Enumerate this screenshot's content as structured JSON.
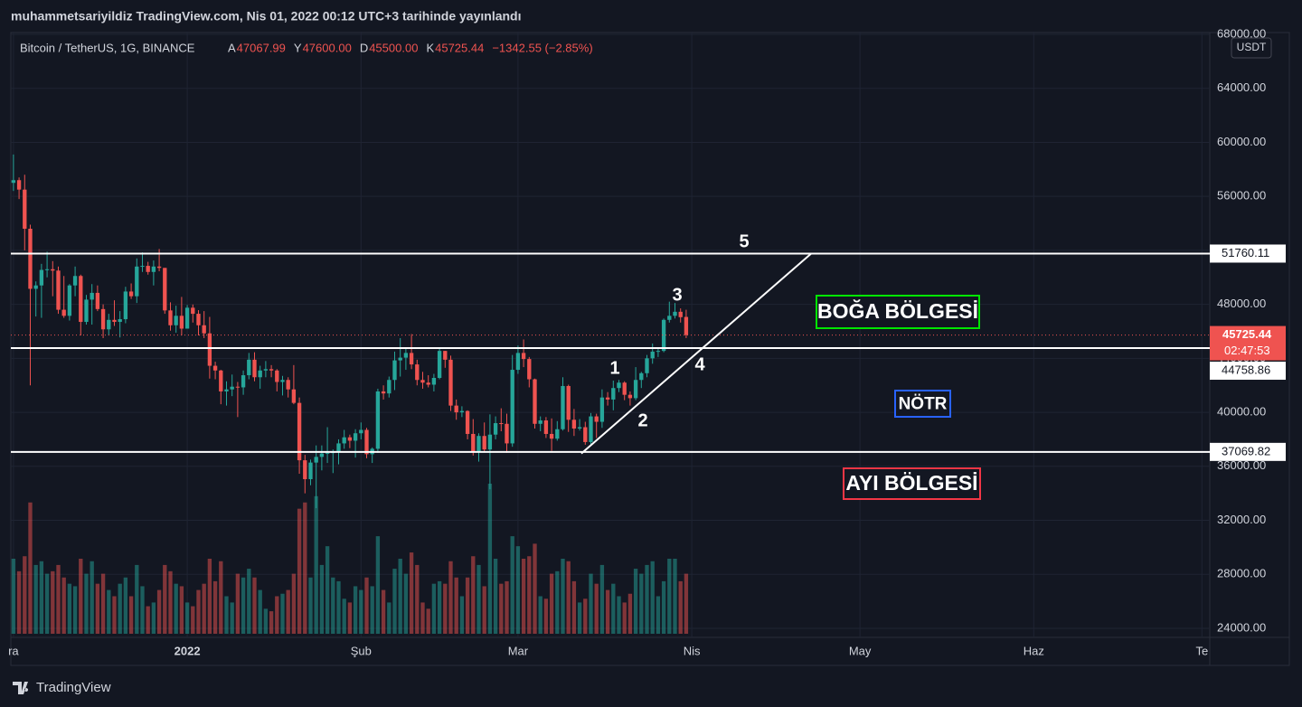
{
  "header": "muhammetsariyildiz TradingView.com, Nis 01, 2022 00:12 UTC+3 tarihinde yayınlandı",
  "footer": "TradingView",
  "chart_data": {
    "type": "candlestick",
    "title": "Bitcoin / TetherUS, 1G, BINANCE",
    "legend": [
      {
        "label": "A",
        "value": "47067.99"
      },
      {
        "label": "Y",
        "value": "47600.00"
      },
      {
        "label": "D",
        "value": "45500.00"
      },
      {
        "label": "K",
        "value": "45725.44"
      }
    ],
    "change": "−1342.55 (−2.85%)",
    "currency": "USDT",
    "countdown": "02:47:53",
    "up_color": "#26a69a",
    "down_color": "#ef5350",
    "xlim": [
      -2.4,
      213.4
    ],
    "xticks": [
      {
        "value": 0,
        "label": "ra"
      },
      {
        "value": 31,
        "label": "2022"
      },
      {
        "value": 62,
        "label": "Şub"
      },
      {
        "value": 90,
        "label": "Mar"
      },
      {
        "value": 121,
        "label": "Nis"
      },
      {
        "value": 151,
        "label": "May"
      },
      {
        "value": 182,
        "label": "Haz"
      },
      {
        "value": 212,
        "label": "Te"
      }
    ],
    "ylim": [
      23330,
      68200
    ],
    "yticks": [
      {
        "value": 68000,
        "label": "68000.00"
      },
      {
        "value": 64000,
        "label": "64000.00"
      },
      {
        "value": 60000,
        "label": "60000.00"
      },
      {
        "value": 56000,
        "label": "56000.00"
      },
      {
        "value": 52000,
        "label": "52000.00"
      },
      {
        "value": 48000,
        "label": "48000.00"
      },
      {
        "value": 44000,
        "label": "44000.00"
      },
      {
        "value": 40000,
        "label": "40000.00"
      },
      {
        "value": 36000,
        "label": "36000.00"
      },
      {
        "value": 32000,
        "label": "32000.00"
      },
      {
        "value": 28000,
        "label": "28000.00"
      },
      {
        "value": 24000,
        "label": "24000.00"
      }
    ],
    "levels": [
      51760.11,
      44758.86,
      37069.82
    ],
    "trendline": {
      "x": [
        101.3,
        142.3
      ],
      "y": [
        36950,
        51760
      ]
    },
    "annotations": [
      "1",
      "2",
      "3",
      "4",
      "5"
    ],
    "zones": [
      {
        "label": "BOĞA BÖLGESİ",
        "color": "#00e600"
      },
      {
        "label": "NÖTR",
        "color": "#2962ff"
      },
      {
        "label": "AYI BÖLGESİ",
        "color": "#f23645"
      }
    ],
    "candles": [
      [
        57000,
        59100,
        56400,
        57200
      ],
      [
        57200,
        57400,
        55800,
        56500
      ],
      [
        56500,
        57600,
        52000,
        53600
      ],
      [
        53600,
        53900,
        42000,
        49150
      ],
      [
        49150,
        49700,
        47100,
        49400
      ],
      [
        49400,
        51000,
        47000,
        50550
      ],
      [
        50550,
        51900,
        50000,
        50600
      ],
      [
        50600,
        51200,
        48600,
        50500
      ],
      [
        50500,
        50800,
        47300,
        47600
      ],
      [
        47600,
        50100,
        47000,
        47150
      ],
      [
        47150,
        49500,
        46800,
        49400
      ],
      [
        49400,
        50800,
        48600,
        50100
      ],
      [
        50100,
        50200,
        45700,
        46700
      ],
      [
        46700,
        48700,
        46500,
        48350
      ],
      [
        48350,
        49500,
        46500,
        48850
      ],
      [
        48850,
        49400,
        47500,
        47650
      ],
      [
        47650,
        48000,
        45500,
        46150
      ],
      [
        46150,
        47300,
        45700,
        46850
      ],
      [
        46850,
        48300,
        46400,
        46700
      ],
      [
        46700,
        47500,
        45550,
        46900
      ],
      [
        46900,
        49300,
        46600,
        48950
      ],
      [
        48950,
        49550,
        48400,
        48600
      ],
      [
        48600,
        51400,
        48100,
        50800
      ],
      [
        50800,
        51850,
        50400,
        50850
      ],
      [
        50850,
        51150,
        50200,
        50400
      ],
      [
        50400,
        51250,
        49400,
        50800
      ],
      [
        50800,
        52100,
        50450,
        50700
      ],
      [
        50700,
        50700,
        47300,
        47550
      ],
      [
        47550,
        48150,
        46050,
        46450
      ],
      [
        46450,
        47900,
        45900,
        47150
      ],
      [
        47150,
        48550,
        45700,
        46200
      ],
      [
        46200,
        47950,
        46200,
        47750
      ],
      [
        47750,
        47990,
        46650,
        47300
      ],
      [
        47300,
        47570,
        45700,
        46450
      ],
      [
        46450,
        47500,
        45500,
        45850
      ],
      [
        45850,
        47070,
        42500,
        43450
      ],
      [
        43450,
        43750,
        42450,
        43100
      ],
      [
        43100,
        43150,
        40600,
        41550
      ],
      [
        41550,
        42300,
        40500,
        41700
      ],
      [
        41700,
        42800,
        41200,
        41900
      ],
      [
        41900,
        42250,
        39650,
        41850
      ],
      [
        41850,
        43100,
        41300,
        42750
      ],
      [
        42750,
        44400,
        42450,
        43900
      ],
      [
        43900,
        44450,
        42300,
        42600
      ],
      [
        42600,
        43450,
        41750,
        43100
      ],
      [
        43100,
        43800,
        42600,
        43200
      ],
      [
        43200,
        43500,
        42600,
        43100
      ],
      [
        43100,
        43200,
        41550,
        42250
      ],
      [
        42250,
        42700,
        41250,
        42400
      ],
      [
        42400,
        42600,
        41100,
        41700
      ],
      [
        41700,
        43500,
        40600,
        40700
      ],
      [
        40700,
        41100,
        35450,
        36450
      ],
      [
        36450,
        36850,
        34000,
        35050
      ],
      [
        35050,
        36500,
        34600,
        36280
      ],
      [
        36280,
        37550,
        32900,
        36700
      ],
      [
        36700,
        37550,
        35700,
        36950
      ],
      [
        36950,
        38900,
        36250,
        37000
      ],
      [
        37000,
        37250,
        35500,
        37050
      ],
      [
        37050,
        38000,
        36150,
        37700
      ],
      [
        37700,
        38700,
        37300,
        38150
      ],
      [
        38150,
        38350,
        37350,
        37900
      ],
      [
        37900,
        38750,
        36650,
        38450
      ],
      [
        38450,
        39250,
        38000,
        38700
      ],
      [
        38700,
        38850,
        36600,
        36900
      ],
      [
        36900,
        37400,
        36250,
        37300
      ],
      [
        37300,
        41750,
        37000,
        41550
      ],
      [
        41550,
        42000,
        40950,
        41400
      ],
      [
        41400,
        42650,
        41100,
        42400
      ],
      [
        42400,
        44500,
        41650,
        43850
      ],
      [
        43850,
        45500,
        42650,
        44050
      ],
      [
        44050,
        44800,
        43150,
        44400
      ],
      [
        44400,
        45800,
        43200,
        43550
      ],
      [
        43550,
        43900,
        42000,
        42400
      ],
      [
        42400,
        43000,
        41750,
        42200
      ],
      [
        42200,
        42750,
        41850,
        42050
      ],
      [
        42050,
        42850,
        41550,
        42550
      ],
      [
        42550,
        44750,
        42450,
        44550
      ],
      [
        44550,
        44550,
        43300,
        43900
      ],
      [
        43900,
        44200,
        40100,
        40500
      ],
      [
        40500,
        40950,
        39450,
        40000
      ],
      [
        40000,
        40450,
        39650,
        40100
      ],
      [
        40100,
        40150,
        38000,
        38400
      ],
      [
        38400,
        39500,
        36800,
        37050
      ],
      [
        37050,
        38450,
        36350,
        38250
      ],
      [
        38250,
        39250,
        37050,
        37250
      ],
      [
        37250,
        39850,
        34300,
        38350
      ],
      [
        38350,
        39700,
        38000,
        39200
      ],
      [
        39200,
        40300,
        38600,
        39150
      ],
      [
        39150,
        39900,
        37000,
        37700
      ],
      [
        37700,
        44250,
        37450,
        43150
      ],
      [
        43150,
        44950,
        42850,
        44400
      ],
      [
        44400,
        45400,
        43350,
        43950
      ],
      [
        43950,
        44100,
        41850,
        42450
      ],
      [
        42450,
        42500,
        38800,
        39150
      ],
      [
        39150,
        39700,
        38600,
        39400
      ],
      [
        39400,
        39650,
        38100,
        38400
      ],
      [
        38400,
        39550,
        37150,
        38050
      ],
      [
        38050,
        39350,
        37900,
        38750
      ],
      [
        38750,
        42600,
        38650,
        41950
      ],
      [
        41950,
        42050,
        38550,
        39450
      ],
      [
        39450,
        40250,
        38250,
        38800
      ],
      [
        38800,
        39500,
        38650,
        38900
      ],
      [
        38900,
        39300,
        37600,
        37800
      ],
      [
        37800,
        39950,
        37550,
        39700
      ],
      [
        39700,
        39900,
        38100,
        39300
      ],
      [
        39300,
        41700,
        38850,
        41100
      ],
      [
        41100,
        41500,
        40500,
        40950
      ],
      [
        40950,
        42350,
        40150,
        41800
      ],
      [
        41800,
        42400,
        41500,
        42200
      ],
      [
        42200,
        42300,
        40900,
        41300
      ],
      [
        41300,
        41550,
        40500,
        41050
      ],
      [
        41050,
        43350,
        40900,
        42400
      ],
      [
        42400,
        43000,
        41800,
        42900
      ],
      [
        42900,
        44250,
        42600,
        44000
      ],
      [
        44000,
        45100,
        43600,
        44500
      ],
      [
        44500,
        44800,
        44100,
        44550
      ],
      [
        44550,
        46950,
        44450,
        46850
      ],
      [
        46850,
        48200,
        46650,
        47150
      ],
      [
        47150,
        48100,
        46950,
        47450
      ],
      [
        47450,
        47700,
        46650,
        47050
      ],
      [
        47067.99,
        47600.0,
        45500.0,
        45725.44
      ]
    ],
    "volume": [
      60,
      50,
      62,
      105,
      55,
      58,
      48,
      50,
      55,
      45,
      40,
      38,
      60,
      48,
      58,
      40,
      48,
      35,
      30,
      40,
      45,
      30,
      55,
      38,
      22,
      25,
      35,
      55,
      50,
      40,
      38,
      25,
      22,
      35,
      40,
      60,
      42,
      58,
      30,
      25,
      48,
      45,
      52,
      45,
      35,
      20,
      18,
      30,
      32,
      35,
      48,
      100,
      105,
      45,
      110,
      55,
      70,
      45,
      42,
      28,
      25,
      38,
      35,
      45,
      38,
      78,
      35,
      25,
      52,
      60,
      48,
      65,
      55,
      25,
      20,
      40,
      42,
      40,
      58,
      45,
      30,
      45,
      62,
      55,
      38,
      120,
      60,
      40,
      42,
      78,
      70,
      60,
      62,
      72,
      30,
      28,
      48,
      50,
      60,
      58,
      42,
      25,
      28,
      48,
      40,
      55,
      35,
      40,
      30,
      25,
      32,
      52,
      48,
      55,
      58,
      30,
      42,
      60,
      60,
      42,
      48
    ]
  }
}
